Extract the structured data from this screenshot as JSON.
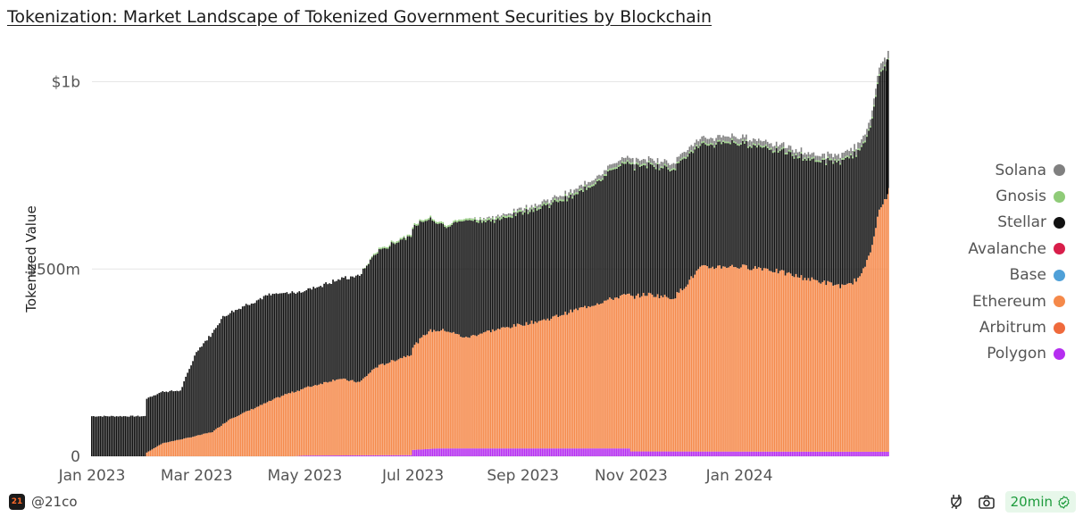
{
  "title": "Tokenization: Market Landscape of Tokenized Government Securities by Blockchain",
  "footer": {
    "handle": "@21co",
    "refresh": "20min",
    "logo_text": "21"
  },
  "colors": {
    "solana": "#808080",
    "gnosis": "#8fcb78",
    "stellar": "#111111",
    "avalanche": "#d81e4a",
    "base": "#4fa0d8",
    "ethereum": "#f5894a",
    "arbitrum": "#ef6a3c",
    "polygon": "#b52ef0"
  },
  "chart_data": {
    "type": "area",
    "stacked": true,
    "ylabel": "Tokenized Value",
    "ylim": [
      0,
      1080000000
    ],
    "yticks": [
      {
        "value": 0,
        "label": "0"
      },
      {
        "value": 500000000,
        "label": "$500m"
      },
      {
        "value": 1000000000,
        "label": "$1b"
      }
    ],
    "xticks": [
      {
        "date": "2023-01-01",
        "label": "Jan 2023"
      },
      {
        "date": "2023-03-01",
        "label": "Mar 2023"
      },
      {
        "date": "2023-05-01",
        "label": "May 2023"
      },
      {
        "date": "2023-07-01",
        "label": "Jul 2023"
      },
      {
        "date": "2023-09-01",
        "label": "Sep 2023"
      },
      {
        "date": "2023-11-01",
        "label": "Nov 2023"
      },
      {
        "date": "2024-01-01",
        "label": "Jan 2024"
      }
    ],
    "x_range": [
      "2023-01-01",
      "2024-03-25"
    ],
    "legend": [
      {
        "name": "Solana",
        "color": "#808080"
      },
      {
        "name": "Gnosis",
        "color": "#8fcb78"
      },
      {
        "name": "Stellar",
        "color": "#111111"
      },
      {
        "name": "Avalanche",
        "color": "#d81e4a"
      },
      {
        "name": "Base",
        "color": "#4fa0d8"
      },
      {
        "name": "Ethereum",
        "color": "#f5894a"
      },
      {
        "name": "Arbitrum",
        "color": "#ef6a3c"
      },
      {
        "name": "Polygon",
        "color": "#b52ef0"
      }
    ],
    "series": [
      {
        "name": "Polygon",
        "color": "#b52ef0",
        "points": [
          [
            "2023-01-01",
            0
          ],
          [
            "2023-04-25",
            0
          ],
          [
            "2023-05-01",
            2000000
          ],
          [
            "2023-06-30",
            3000000
          ],
          [
            "2023-07-01",
            17000000
          ],
          [
            "2023-07-15",
            21000000
          ],
          [
            "2023-10-31",
            21000000
          ],
          [
            "2023-11-01",
            13000000
          ],
          [
            "2024-03-25",
            12000000
          ]
        ]
      },
      {
        "name": "Arbitrum",
        "color": "#ef6a3c",
        "points": [
          [
            "2023-01-01",
            0
          ],
          [
            "2024-03-25",
            0
          ]
        ]
      },
      {
        "name": "Ethereum",
        "color": "#f5894a",
        "points": [
          [
            "2023-01-01",
            0
          ],
          [
            "2023-01-31",
            0
          ],
          [
            "2023-02-01",
            10000000
          ],
          [
            "2023-02-10",
            35000000
          ],
          [
            "2023-02-25",
            50000000
          ],
          [
            "2023-03-10",
            65000000
          ],
          [
            "2023-03-20",
            100000000
          ],
          [
            "2023-04-01",
            125000000
          ],
          [
            "2023-04-20",
            165000000
          ],
          [
            "2023-05-01",
            180000000
          ],
          [
            "2023-05-20",
            205000000
          ],
          [
            "2023-06-01",
            195000000
          ],
          [
            "2023-06-10",
            235000000
          ],
          [
            "2023-06-30",
            270000000
          ],
          [
            "2023-07-10",
            315000000
          ],
          [
            "2023-07-20",
            315000000
          ],
          [
            "2023-07-31",
            295000000
          ],
          [
            "2023-08-10",
            310000000
          ],
          [
            "2023-08-25",
            325000000
          ],
          [
            "2023-09-15",
            345000000
          ],
          [
            "2023-10-01",
            370000000
          ],
          [
            "2023-10-25",
            405000000
          ],
          [
            "2023-11-10",
            420000000
          ],
          [
            "2023-11-25",
            410000000
          ],
          [
            "2023-12-01",
            440000000
          ],
          [
            "2023-12-10",
            490000000
          ],
          [
            "2023-12-25",
            495000000
          ],
          [
            "2024-01-15",
            490000000
          ],
          [
            "2024-02-01",
            470000000
          ],
          [
            "2024-02-15",
            455000000
          ],
          [
            "2024-03-01",
            440000000
          ],
          [
            "2024-03-10",
            470000000
          ],
          [
            "2024-03-15",
            540000000
          ],
          [
            "2024-03-20",
            640000000
          ],
          [
            "2024-03-25",
            695000000
          ]
        ]
      },
      {
        "name": "Base",
        "color": "#4fa0d8",
        "points": [
          [
            "2023-01-01",
            0
          ],
          [
            "2024-03-25",
            0
          ]
        ]
      },
      {
        "name": "Avalanche",
        "color": "#d81e4a",
        "points": [
          [
            "2023-01-01",
            0
          ],
          [
            "2024-03-25",
            0
          ]
        ]
      },
      {
        "name": "Stellar",
        "color": "#111111",
        "points": [
          [
            "2023-01-01",
            107000000
          ],
          [
            "2023-01-31",
            107000000
          ],
          [
            "2023-02-01",
            145000000
          ],
          [
            "2023-02-20",
            130000000
          ],
          [
            "2023-03-01",
            225000000
          ],
          [
            "2023-03-15",
            285000000
          ],
          [
            "2023-04-10",
            285000000
          ],
          [
            "2023-04-20",
            270000000
          ],
          [
            "2023-05-01",
            260000000
          ],
          [
            "2023-05-20",
            265000000
          ],
          [
            "2023-06-01",
            285000000
          ],
          [
            "2023-06-10",
            305000000
          ],
          [
            "2023-06-30",
            320000000
          ],
          [
            "2023-07-10",
            300000000
          ],
          [
            "2023-07-20",
            280000000
          ],
          [
            "2023-07-31",
            315000000
          ],
          [
            "2023-08-15",
            290000000
          ],
          [
            "2023-09-01",
            300000000
          ],
          [
            "2023-09-20",
            305000000
          ],
          [
            "2023-10-01",
            305000000
          ],
          [
            "2023-10-25",
            350000000
          ],
          [
            "2023-11-10",
            345000000
          ],
          [
            "2023-11-25",
            345000000
          ],
          [
            "2023-12-01",
            345000000
          ],
          [
            "2023-12-10",
            325000000
          ],
          [
            "2023-12-25",
            330000000
          ],
          [
            "2024-01-15",
            325000000
          ],
          [
            "2024-02-01",
            320000000
          ],
          [
            "2024-02-15",
            320000000
          ],
          [
            "2024-03-01",
            335000000
          ],
          [
            "2024-03-10",
            340000000
          ],
          [
            "2024-03-15",
            330000000
          ],
          [
            "2024-03-20",
            360000000
          ],
          [
            "2024-03-25",
            345000000
          ]
        ]
      },
      {
        "name": "Gnosis",
        "color": "#8fcb78",
        "points": [
          [
            "2023-01-01",
            0
          ],
          [
            "2023-06-01",
            0
          ],
          [
            "2023-06-10",
            4000000
          ],
          [
            "2023-08-10",
            5000000
          ],
          [
            "2023-12-01",
            4000000
          ],
          [
            "2024-03-25",
            4000000
          ]
        ]
      },
      {
        "name": "Solana",
        "color": "#808080",
        "points": [
          [
            "2023-01-01",
            0
          ],
          [
            "2023-07-31",
            0
          ],
          [
            "2023-08-15",
            4000000
          ],
          [
            "2023-10-01",
            10000000
          ],
          [
            "2023-11-10",
            12000000
          ],
          [
            "2023-12-10",
            14000000
          ],
          [
            "2024-02-15",
            12000000
          ],
          [
            "2024-03-01",
            15000000
          ],
          [
            "2024-03-20",
            18000000
          ],
          [
            "2024-03-25",
            20000000
          ]
        ]
      }
    ]
  }
}
